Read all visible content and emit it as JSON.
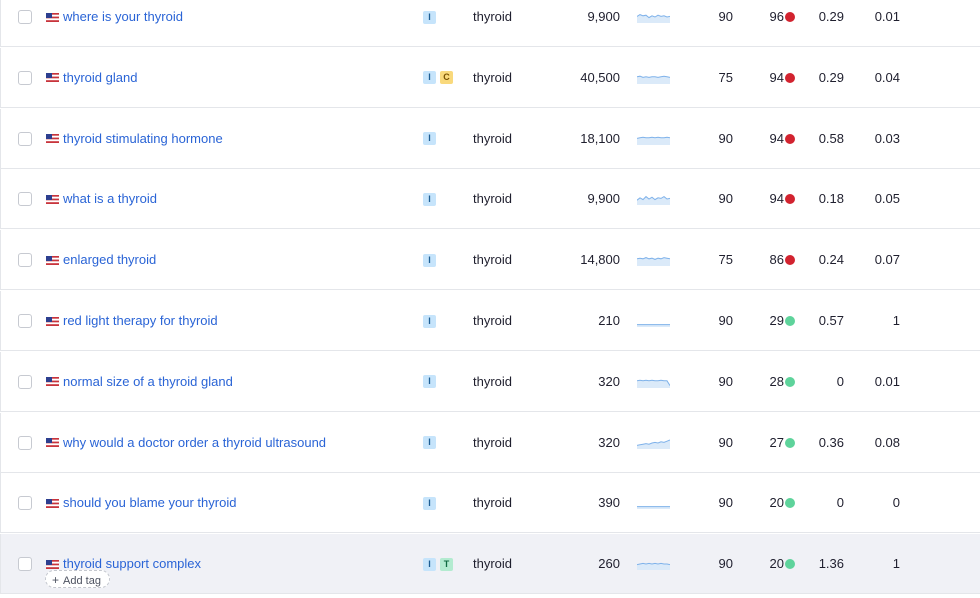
{
  "colors": {
    "link": "#2a64d6",
    "kd_hard": "#d2232f",
    "kd_easy": "#5ed39b",
    "trend": "#7fb2ea"
  },
  "add_tag_label": "Add tag",
  "rows": [
    {
      "keyword": "where is your thyroid",
      "intents": [
        "I"
      ],
      "topic": "thyroid",
      "volume": "9,900",
      "kd_cpc": "90",
      "kd": "96",
      "kd_level": "hard",
      "cpc": "0.29",
      "com": "0.01",
      "trend": [
        0.55,
        0.7,
        0.6,
        0.65,
        0.45,
        0.6,
        0.5,
        0.65,
        0.55,
        0.6,
        0.5,
        0.55
      ]
    },
    {
      "keyword": "thyroid gland",
      "intents": [
        "I",
        "C"
      ],
      "topic": "thyroid",
      "volume": "40,500",
      "kd_cpc": "75",
      "kd": "94",
      "kd_level": "hard",
      "cpc": "0.29",
      "com": "0.04",
      "trend": [
        0.6,
        0.65,
        0.55,
        0.6,
        0.55,
        0.6,
        0.6,
        0.55,
        0.6,
        0.65,
        0.6,
        0.55
      ]
    },
    {
      "keyword": "thyroid stimulating hormone",
      "intents": [
        "I"
      ],
      "topic": "thyroid",
      "volume": "18,100",
      "kd_cpc": "90",
      "kd": "94",
      "kd_level": "hard",
      "cpc": "0.58",
      "com": "0.03",
      "trend": [
        0.55,
        0.6,
        0.65,
        0.6,
        0.6,
        0.65,
        0.6,
        0.65,
        0.6,
        0.6,
        0.65,
        0.6
      ]
    },
    {
      "keyword": "what is a thyroid",
      "intents": [
        "I"
      ],
      "topic": "thyroid",
      "volume": "9,900",
      "kd_cpc": "90",
      "kd": "94",
      "kd_level": "hard",
      "cpc": "0.18",
      "com": "0.05",
      "trend": [
        0.4,
        0.6,
        0.45,
        0.7,
        0.5,
        0.65,
        0.45,
        0.6,
        0.55,
        0.7,
        0.5,
        0.55
      ]
    },
    {
      "keyword": "enlarged thyroid",
      "intents": [
        "I"
      ],
      "topic": "thyroid",
      "volume": "14,800",
      "kd_cpc": "75",
      "kd": "86",
      "kd_level": "hard",
      "cpc": "0.24",
      "com": "0.07",
      "trend": [
        0.6,
        0.65,
        0.6,
        0.7,
        0.6,
        0.65,
        0.55,
        0.65,
        0.6,
        0.7,
        0.65,
        0.6
      ]
    },
    {
      "keyword": "red light therapy for thyroid",
      "intents": [
        "I"
      ],
      "topic": "thyroid",
      "volume": "210",
      "kd_cpc": "90",
      "kd": "29",
      "kd_level": "easy",
      "cpc": "0.57",
      "com": "1",
      "trend": [
        0.2,
        0.2,
        0.2,
        0.2,
        0.2,
        0.2,
        0.2,
        0.2,
        0.2,
        0.2,
        0.2,
        0.2
      ]
    },
    {
      "keyword": "normal size of a thyroid gland",
      "intents": [
        "I"
      ],
      "topic": "thyroid",
      "volume": "320",
      "kd_cpc": "90",
      "kd": "28",
      "kd_level": "easy",
      "cpc": "0",
      "com": "0.01",
      "trend": [
        0.6,
        0.65,
        0.6,
        0.65,
        0.6,
        0.65,
        0.6,
        0.6,
        0.65,
        0.6,
        0.6,
        0.2
      ]
    },
    {
      "keyword": "why would a doctor order a thyroid ultrasound",
      "intents": [
        "I"
      ],
      "topic": "thyroid",
      "volume": "320",
      "kd_cpc": "90",
      "kd": "27",
      "kd_level": "easy",
      "cpc": "0.36",
      "com": "0.08",
      "trend": [
        0.3,
        0.35,
        0.4,
        0.45,
        0.4,
        0.5,
        0.55,
        0.5,
        0.6,
        0.55,
        0.65,
        0.75
      ]
    },
    {
      "keyword": "should you blame your thyroid",
      "intents": [
        "I"
      ],
      "topic": "thyroid",
      "volume": "390",
      "kd_cpc": "90",
      "kd": "20",
      "kd_level": "easy",
      "cpc": "0",
      "com": "0",
      "trend": [
        0.2,
        0.2,
        0.2,
        0.2,
        0.2,
        0.2,
        0.2,
        0.2,
        0.2,
        0.2,
        0.2,
        0.2
      ]
    },
    {
      "keyword": "thyroid support complex",
      "intents": [
        "I",
        "T"
      ],
      "topic": "thyroid",
      "volume": "260",
      "kd_cpc": "90",
      "kd": "20",
      "kd_level": "easy",
      "cpc": "1.36",
      "com": "1",
      "trend": [
        0.45,
        0.5,
        0.55,
        0.5,
        0.55,
        0.5,
        0.55,
        0.5,
        0.55,
        0.5,
        0.5,
        0.45
      ],
      "highlighted": true,
      "show_add_tag": true
    }
  ]
}
